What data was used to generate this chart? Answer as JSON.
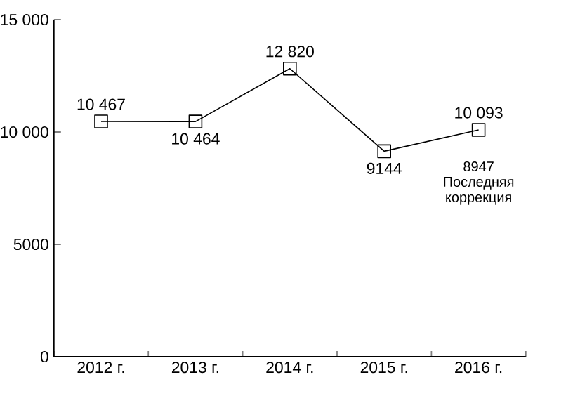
{
  "chart_data": {
    "type": "line",
    "categories": [
      "2012 г.",
      "2013 г.",
      "2014 г.",
      "2015 г.",
      "2016 г."
    ],
    "values": [
      10467,
      10464,
      12820,
      9144,
      10093
    ],
    "color": "#000000",
    "marker": "square",
    "line_style": "solid",
    "data_labels": true,
    "value_labels": [
      "10 467",
      "10 464",
      "12 820",
      "9144",
      "10 093"
    ],
    "ylim": [
      0,
      15000
    ],
    "yticks": [
      0,
      5000,
      {
        "value": 10000,
        "label": "10 000"
      },
      {
        "value": 15000,
        "label": "15 000"
      }
    ],
    "annotations": [
      "8947 Последняя коррекция"
    ]
  }
}
